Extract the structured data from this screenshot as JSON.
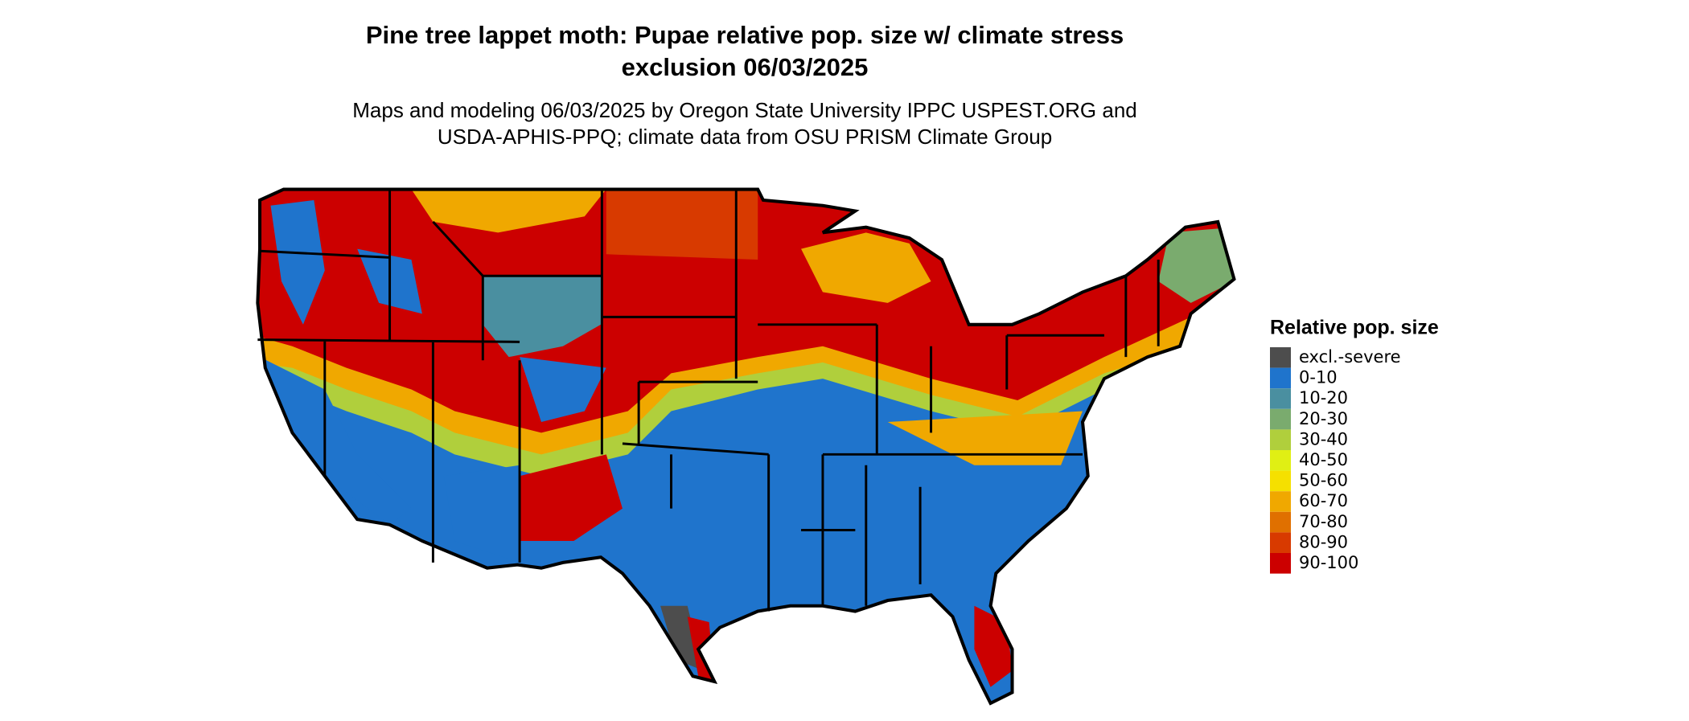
{
  "title": [
    "Pine tree lappet moth: Pupae relative pop. size w/ climate stress",
    "exclusion 06/03/2025"
  ],
  "subtitle": [
    "Maps and modeling 06/03/2025 by Oregon State University IPPC USPEST.ORG and",
    "USDA-APHIS-PPQ; climate data from OSU PRISM Climate Group"
  ],
  "legend": {
    "title": "Relative pop. size",
    "items": [
      {
        "label": "excl.-severe",
        "color": "#4d4d4d"
      },
      {
        "label": "0-10",
        "color": "#1f74cc"
      },
      {
        "label": "10-20",
        "color": "#4a8fa0"
      },
      {
        "label": "20-30",
        "color": "#7aab6e"
      },
      {
        "label": "30-40",
        "color": "#b0cf3c"
      },
      {
        "label": "40-50",
        "color": "#e0ef14"
      },
      {
        "label": "50-60",
        "color": "#f5e000"
      },
      {
        "label": "60-70",
        "color": "#f0a800"
      },
      {
        "label": "70-80",
        "color": "#e07000"
      },
      {
        "label": "80-90",
        "color": "#d83a00"
      },
      {
        "label": "90-100",
        "color": "#cc0000"
      }
    ]
  }
}
